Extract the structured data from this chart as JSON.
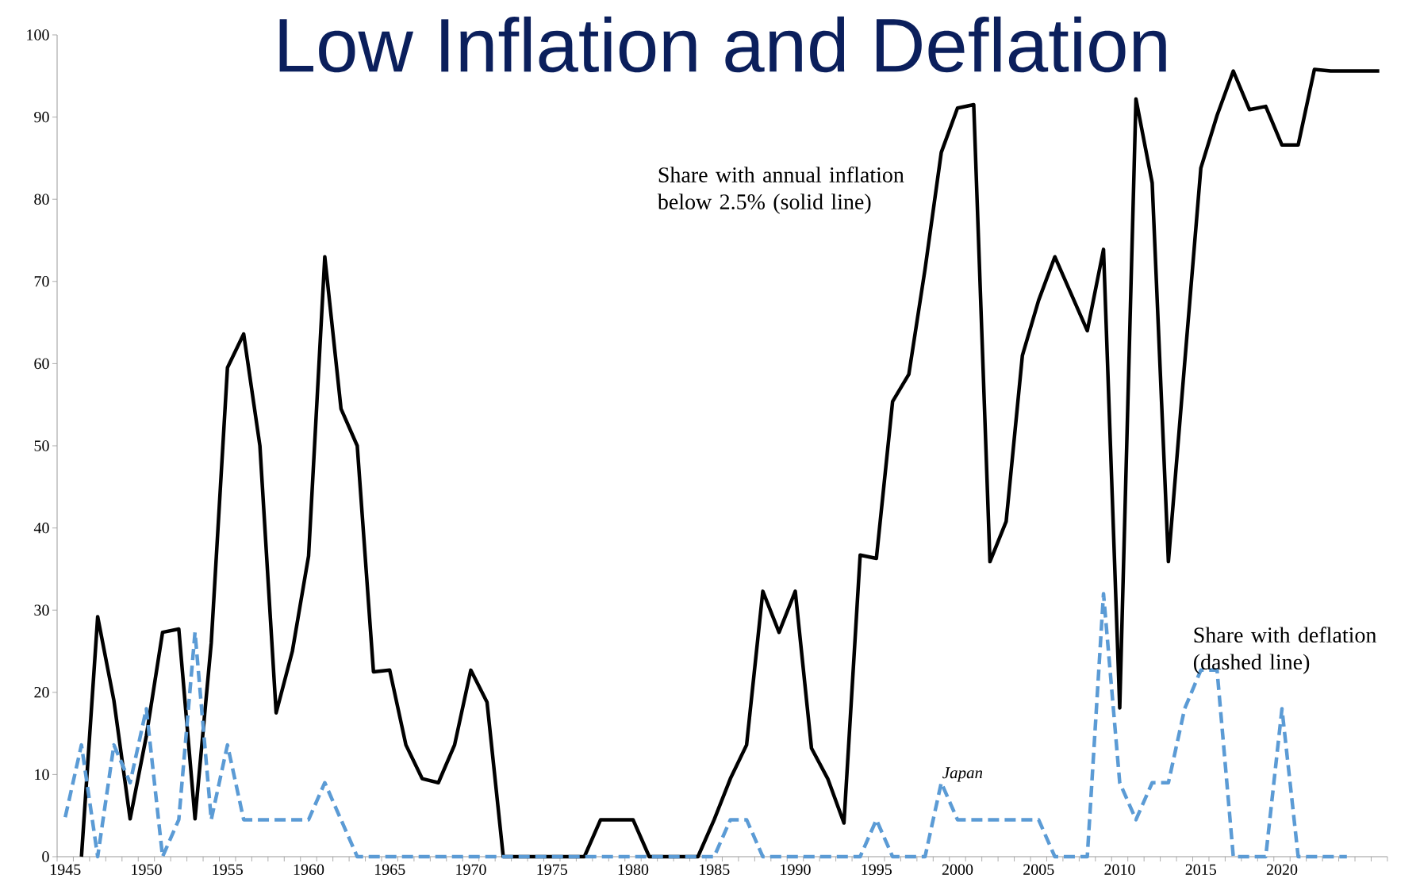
{
  "chart_data": {
    "type": "line",
    "title": "Low Inflation and Deflation",
    "x": [
      1945,
      1946,
      1947,
      1948,
      1949,
      1950,
      1951,
      1952,
      1953,
      1954,
      1955,
      1956,
      1957,
      1958,
      1959,
      1960,
      1961,
      1962,
      1963,
      1964,
      1965,
      1966,
      1967,
      1968,
      1969,
      1970,
      1971,
      1972,
      1973,
      1974,
      1975,
      1976,
      1977,
      1978,
      1979,
      1980,
      1981,
      1982,
      1983,
      1984,
      1985,
      1986,
      1987,
      1988,
      1989,
      1990,
      1991,
      1992,
      1993,
      1994,
      1995,
      1996,
      1997,
      1998,
      1999,
      2000,
      2001,
      2002,
      2003,
      2004,
      2005,
      2006,
      2007,
      2008,
      2009,
      2010,
      2011,
      2012,
      2013,
      2014,
      2015,
      2016,
      2017,
      2018,
      2019,
      2020,
      2021,
      2022,
      2023,
      2024,
      2025,
      2026
    ],
    "series": [
      {
        "name": "Share with annual inflation below 2.5% (solid line)",
        "color": "#000000",
        "line_style": "solid",
        "values": [
          null,
          0,
          29.2,
          19,
          4.6,
          14.7,
          27.3,
          27.7,
          4.6,
          26,
          59.5,
          63.6,
          50,
          17.5,
          25,
          36.6,
          73,
          54.5,
          50,
          22.5,
          22.7,
          13.6,
          9.5,
          9,
          13.6,
          22.7,
          18.8,
          0,
          0,
          0,
          0,
          0,
          0,
          4.5,
          4.5,
          4.5,
          0,
          0,
          0,
          0,
          4.5,
          9.5,
          13.6,
          32.3,
          27.3,
          32.3,
          13.2,
          9.5,
          4.1,
          36.7,
          36.3,
          55.4,
          58.7,
          71.5,
          85.7,
          91.1,
          91.5,
          35.9,
          40.8,
          61,
          67.7,
          73,
          68.5,
          64,
          73.9,
          18.1,
          92.2,
          82,
          35.9,
          60,
          83.8,
          90.2,
          95.6,
          90.9,
          91.3,
          86.6,
          86.6,
          95.8,
          95.6,
          95.6,
          95.6,
          95.6
        ]
      },
      {
        "name": "Share with deflation (dashed line)",
        "color": "#5b9bd5",
        "line_style": "dashed",
        "values": [
          4.8,
          13.6,
          0,
          13.6,
          9,
          18,
          0,
          4.5,
          27.3,
          4.5,
          13.6,
          4.5,
          4.5,
          4.5,
          4.5,
          4.5,
          9,
          4.5,
          0,
          0,
          0,
          0,
          0,
          0,
          0,
          0,
          0,
          0,
          0,
          0,
          0,
          0,
          0,
          0,
          0,
          0,
          0,
          0,
          0,
          0,
          0,
          4.5,
          4.5,
          0,
          0,
          0,
          0,
          0,
          0,
          0,
          4.5,
          0,
          0,
          0,
          9,
          4.5,
          4.5,
          4.5,
          4.5,
          4.5,
          4.5,
          0,
          0,
          0,
          32,
          9,
          4.5,
          9,
          9,
          18,
          22.7,
          22.7,
          0,
          0,
          0,
          18,
          0,
          0,
          0,
          0,
          null,
          null
        ]
      }
    ],
    "annotations": [
      {
        "text": "Japan",
        "x": 1999,
        "y": 9
      }
    ],
    "xlim": [
      1944.5,
      2026.5
    ],
    "ylim": [
      0,
      100
    ],
    "xticks": [
      1945,
      1950,
      1955,
      1960,
      1965,
      1970,
      1975,
      1980,
      1985,
      1990,
      1995,
      2000,
      2005,
      2010,
      2015,
      2020
    ],
    "yticks": [
      0,
      10,
      20,
      30,
      40,
      50,
      60,
      70,
      80,
      90,
      100
    ],
    "grid": false,
    "legend": false
  }
}
